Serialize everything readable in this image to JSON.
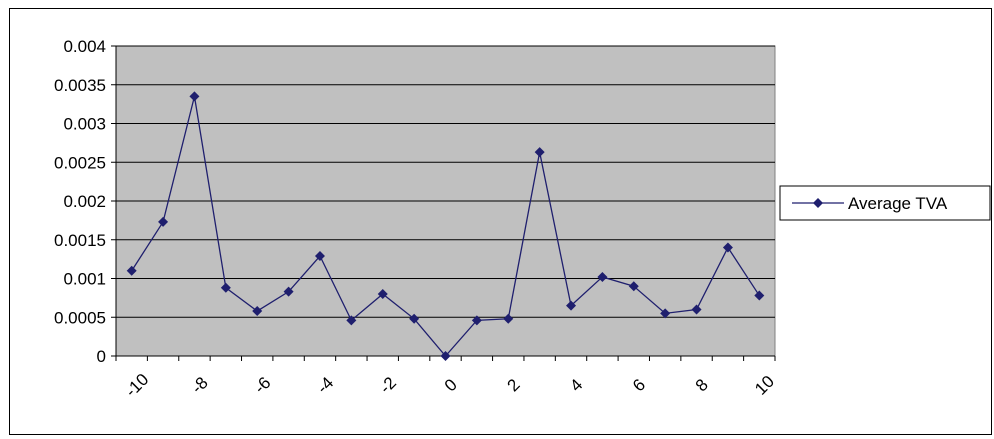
{
  "chart_data": {
    "type": "line",
    "title": "",
    "xlabel": "",
    "ylabel": "",
    "x": [
      -10,
      -9,
      -8,
      -7,
      -6,
      -5,
      -4,
      -3,
      -2,
      -1,
      0,
      1,
      2,
      3,
      4,
      5,
      6,
      7,
      8,
      9,
      10
    ],
    "x_tick_labels": [
      "-10",
      "-8",
      "-6",
      "-4",
      "-2",
      "0",
      "2",
      "4",
      "6",
      "8",
      "10"
    ],
    "y_tick_labels": [
      "0",
      "0.0005",
      "0.001",
      "0.0015",
      "0.002",
      "0.0025",
      "0.003",
      "0.0035",
      "0.004"
    ],
    "ylim": [
      0,
      0.004
    ],
    "grid": "horizontal",
    "plot_background": "#c0c0c0",
    "legend_placement": "right",
    "series": [
      {
        "name": "Average TVA",
        "color": "#1f1f6e",
        "marker": "diamond",
        "values": [
          0.0011,
          0.00173,
          0.00335,
          0.00088,
          0.00058,
          0.00083,
          0.00129,
          0.00046,
          0.0008,
          0.00048,
          0.0,
          0.00046,
          0.00048,
          0.00263,
          0.00065,
          0.00102,
          0.0009,
          0.00055,
          0.0006,
          0.0014,
          0.00078
        ]
      }
    ]
  }
}
